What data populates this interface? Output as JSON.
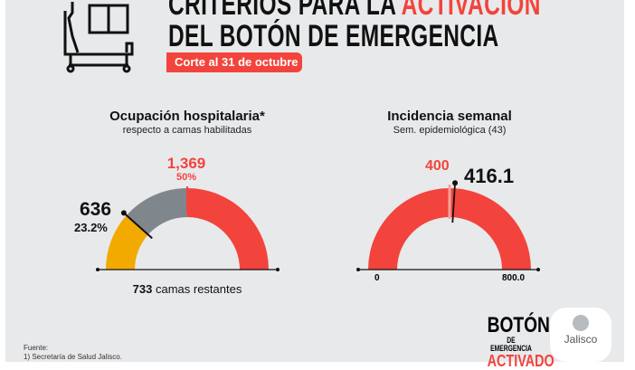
{
  "header": {
    "title_line1_a": "CRITERIOS PARA LA ",
    "title_line1_b": "ACTIVACIÓN",
    "title_line2": "DEL BOTÓN DE EMERGENCIA",
    "badge": "Corte al 31 de octubre",
    "icon": "hospital-bed-icon"
  },
  "occupancy": {
    "title": "Ocupación hospitalaria*",
    "subtitle": "respecto a camas habilitadas",
    "threshold_value": "1,369",
    "threshold_pct": "50%",
    "current_value": "636",
    "current_pct": "23.2%",
    "current_fraction": 0.232,
    "threshold_fraction": 0.5,
    "remaining": "733",
    "remaining_label": "camas restantes",
    "colors": {
      "occupied": "#f2a900",
      "free_below": "#7f868c",
      "above": "#f2443c"
    }
  },
  "incidence": {
    "title": "Incidencia semanal",
    "subtitle": "Sem. epidemiológica (43)",
    "threshold": "400",
    "current": "416.1",
    "min_label": "0",
    "max_label": "800.0",
    "min": 0,
    "max": 800,
    "threshold_value": 400,
    "current_value": 416.1,
    "color": "#f2443c"
  },
  "footer": {
    "source_label": "Fuente:",
    "source": "1) Secretaría de Salud Jalisco.",
    "logo1_line1": "BOTÓN",
    "logo1_line2": "DE EMERGENCIA",
    "logo1_line3": "ACTIVADO",
    "logo2": "Jalisco"
  }
}
